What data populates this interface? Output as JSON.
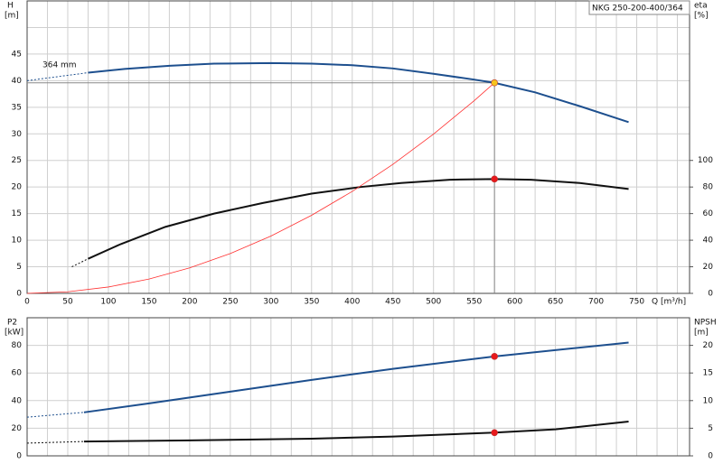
{
  "chart_data": [
    {
      "type": "line",
      "title": "NKG 250-200-400/364",
      "annotation": "364 mm",
      "ylabel": "H",
      "yunit": "[m]",
      "y2label": "eta",
      "y2unit": "[%]",
      "xlabel": "Q [m³/h]",
      "xlim": [
        0,
        815
      ],
      "ylim": [
        0,
        55
      ],
      "y2lim": [
        0,
        220
      ],
      "xticks": [
        0,
        50,
        100,
        150,
        200,
        250,
        300,
        350,
        400,
        450,
        500,
        550,
        600,
        650,
        700,
        750
      ],
      "xminorticks": [
        25,
        75,
        125,
        175,
        225,
        275,
        325,
        375,
        425,
        475,
        525,
        575,
        625,
        675,
        725,
        775,
        800
      ],
      "yticks": [
        0,
        5,
        10,
        15,
        20,
        25,
        30,
        35,
        40,
        45
      ],
      "yminorticks": [
        50
      ],
      "y2ticks": [
        0,
        20,
        40,
        60,
        80,
        100
      ],
      "grid": true,
      "series": [
        {
          "color": "#1d4f8e",
          "dash": true,
          "x": [
            0,
            75
          ],
          "values": [
            40,
            41.5
          ]
        },
        {
          "color": "#1d4f8e",
          "x": [
            75,
            120,
            175,
            230,
            300,
            350,
            400,
            450,
            500,
            550,
            575,
            625,
            680,
            740
          ],
          "values": [
            41.5,
            42.2,
            42.8,
            43.2,
            43.3,
            43.2,
            42.9,
            42.3,
            41.3,
            40.2,
            39.6,
            37.8,
            35.2,
            32.2
          ]
        },
        {
          "color": "#111111",
          "dash": true,
          "axis": "y2",
          "x": [
            55,
            75
          ],
          "values": [
            20,
            26
          ]
        },
        {
          "color": "#111111",
          "axis": "y2",
          "x": [
            75,
            115,
            170,
            230,
            290,
            350,
            410,
            460,
            520,
            575,
            620,
            680,
            740
          ],
          "values": [
            26,
            37,
            50,
            60,
            68,
            75,
            80,
            83,
            85.5,
            86,
            85.5,
            83,
            78.5
          ]
        },
        {
          "color": "#ff3030",
          "thin": true,
          "x": [
            0,
            50,
            100,
            150,
            200,
            250,
            300,
            350,
            400,
            450,
            500,
            550,
            575
          ],
          "values": [
            0,
            0.3,
            1.2,
            2.7,
            4.79,
            7.49,
            10.78,
            14.68,
            19.17,
            24.26,
            29.95,
            36.24,
            39.6
          ]
        },
        {
          "color": "#f7c51e",
          "marker": true,
          "crosshair": true,
          "x": [
            575
          ],
          "values": [
            39.6
          ]
        },
        {
          "color": "#e8191c",
          "marker": true,
          "axis": "y2",
          "x": [
            575
          ],
          "values": [
            86
          ]
        }
      ]
    },
    {
      "type": "line",
      "ylabel": "P2",
      "yunit": "[kW]",
      "y2label": "NPSH",
      "y2unit": "[m]",
      "xlim": [
        0,
        815
      ],
      "ylim": [
        0,
        100
      ],
      "y2lim": [
        0,
        25
      ],
      "xminorticks": [
        0,
        25,
        50,
        75,
        100,
        125,
        150,
        175,
        200,
        225,
        250,
        275,
        300,
        325,
        350,
        375,
        400,
        425,
        450,
        475,
        500,
        525,
        550,
        575,
        600,
        625,
        650,
        675,
        700,
        725,
        750,
        775,
        800
      ],
      "yticks": [
        0,
        20,
        40,
        60,
        80
      ],
      "y2ticks": [
        0,
        5,
        10,
        15,
        20
      ],
      "grid": true,
      "series": [
        {
          "color": "#1d4f8e",
          "dash": true,
          "x": [
            0,
            70
          ],
          "values": [
            28,
            31.5
          ]
        },
        {
          "color": "#1d4f8e",
          "x": [
            70,
            150,
            250,
            350,
            450,
            575,
            740
          ],
          "values": [
            31.5,
            38,
            46.5,
            55,
            63,
            72,
            82
          ]
        },
        {
          "color": "#111111",
          "dash": true,
          "axis": "y2",
          "x": [
            0,
            70
          ],
          "values": [
            2.3,
            2.6
          ]
        },
        {
          "color": "#111111",
          "axis": "y2",
          "x": [
            70,
            200,
            350,
            450,
            575,
            650,
            740
          ],
          "values": [
            2.6,
            2.8,
            3.1,
            3.5,
            4.2,
            4.8,
            6.2
          ]
        },
        {
          "color": "#e8191c",
          "marker": true,
          "x": [
            575
          ],
          "values": [
            72
          ]
        },
        {
          "color": "#e8191c",
          "marker": true,
          "axis": "y2",
          "x": [
            575
          ],
          "values": [
            4.2
          ]
        }
      ]
    }
  ]
}
